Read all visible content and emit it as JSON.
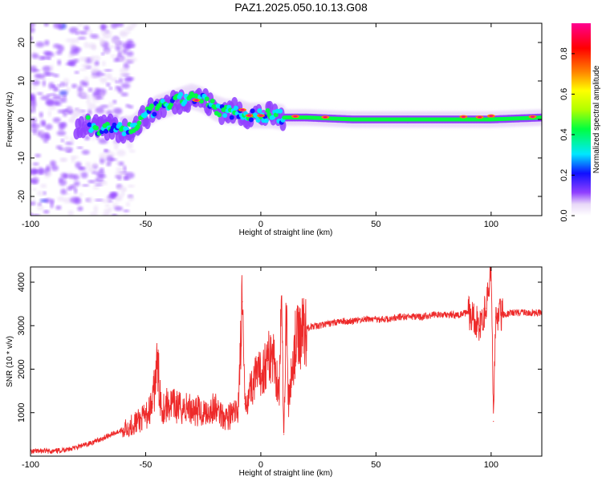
{
  "title": "PAZ1.2025.050.10.13.G08",
  "chart_data": [
    {
      "type": "heatmap",
      "xlabel": "Height of straight line (km)",
      "ylabel": "Frequency (Hz)",
      "xlim": [
        -100,
        122
      ],
      "ylim": [
        -25,
        25
      ],
      "xticks": [
        -100,
        -50,
        0,
        50,
        100
      ],
      "xtick_labels": [
        "-100",
        "-50",
        "0",
        "50",
        "100"
      ],
      "yticks": [
        -20,
        -10,
        0,
        10,
        20
      ],
      "ytick_labels": [
        "-20",
        "-10",
        "0",
        "10",
        "20"
      ],
      "colorbar": {
        "label": "Normalized spectral amplitude",
        "range": [
          0,
          0.95
        ],
        "ticks": [
          0,
          0.2,
          0.4,
          0.6,
          0.8
        ],
        "tick_labels": [
          "0.0",
          "0.2",
          "0.4",
          "0.6",
          "0.8"
        ],
        "colormap": [
          "#ffffff",
          "#e8d8f8",
          "#9040ff",
          "#1010ff",
          "#00e8ff",
          "#00ff40",
          "#b0ff00",
          "#ffff00",
          "#ff8000",
          "#ff0000",
          "#ff0090"
        ]
      },
      "ridge": {
        "description_free": true,
        "x": [
          -100,
          -90,
          -80,
          -75,
          -70,
          -65,
          -60,
          -55,
          -50,
          -45,
          -40,
          -35,
          -30,
          -25,
          -20,
          -15,
          -10,
          -5,
          0,
          5,
          10,
          20,
          40,
          60,
          80,
          100,
          122
        ],
        "y": [
          -3,
          -4,
          -2,
          -1,
          -3,
          -2,
          -3,
          -2,
          1,
          3,
          4,
          5,
          6,
          5,
          3,
          2,
          2,
          1,
          1,
          1,
          0.5,
          0.5,
          0,
          0,
          0,
          0,
          0.5
        ]
      },
      "grid": false
    },
    {
      "type": "line",
      "xlabel": "Height of straight line (km)",
      "ylabel": "SNR (10 * v/v)",
      "xlim": [
        -100,
        122
      ],
      "ylim": [
        0,
        4350
      ],
      "xticks": [
        -100,
        -50,
        0,
        50,
        100
      ],
      "xtick_labels": [
        "-100",
        "-50",
        "0",
        "50",
        "100"
      ],
      "yticks": [
        1000,
        2000,
        3000,
        4000
      ],
      "ytick_labels": [
        "1000",
        "2000",
        "3000",
        "4000"
      ],
      "series": [
        {
          "color": "#ee2a2a",
          "x": [
            -100,
            -95,
            -90,
            -85,
            -80,
            -75,
            -70,
            -65,
            -60,
            -55,
            -50,
            -47,
            -45,
            -43,
            -40,
            -35,
            -30,
            -25,
            -20,
            -15,
            -10,
            -8,
            -7,
            -5,
            -2,
            0,
            3,
            5,
            8,
            9,
            10,
            11,
            12,
            15,
            18,
            20,
            25,
            30,
            35,
            40,
            45,
            50,
            55,
            60,
            65,
            70,
            75,
            80,
            85,
            90,
            95,
            98,
            100,
            101,
            102,
            105,
            110,
            115,
            122
          ],
          "y": [
            100,
            120,
            110,
            150,
            200,
            280,
            380,
            500,
            600,
            750,
            900,
            1200,
            2100,
            1100,
            1200,
            1100,
            1100,
            1000,
            1100,
            900,
            1000,
            3550,
            1200,
            1500,
            1800,
            1900,
            2200,
            2400,
            1500,
            3550,
            500,
            3400,
            1200,
            2600,
            2900,
            2950,
            3000,
            3050,
            3100,
            3100,
            3150,
            3150,
            3150,
            3200,
            3200,
            3200,
            3250,
            3250,
            3250,
            3300,
            3000,
            3400,
            4350,
            800,
            3200,
            3250,
            3300,
            3300,
            3300
          ]
        }
      ],
      "grid": false
    }
  ]
}
